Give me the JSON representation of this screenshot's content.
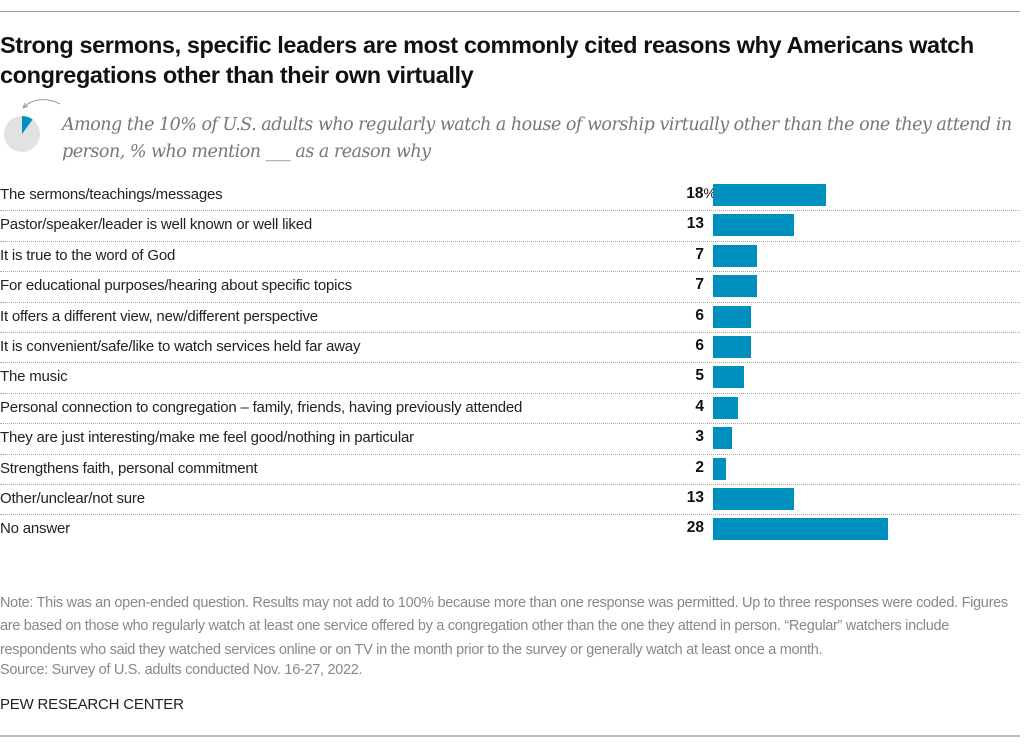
{
  "title": "Strong sermons, specific leaders are most commonly cited reasons why Americans watch congregations other than their own virtually",
  "subtitle": "Among the 10% of U.S. adults who regularly watch a house of worship virtually other than the one they attend in person, % who mention ___ as a reason why",
  "pie_icon": {
    "share_percent": 10,
    "fill_color": "#0090c0",
    "rest_color": "#e1e2e4"
  },
  "chart_data": {
    "type": "bar",
    "orientation": "horizontal",
    "title": "Strong sermons, specific leaders are most commonly cited reasons why Americans watch congregations other than their own virtually",
    "subtitle": "Among the 10% of U.S. adults who regularly watch a house of worship virtually other than the one they attend in person, % who mention ___ as a reason why",
    "xlabel": "",
    "ylabel": "",
    "unit": "%",
    "xlim": [
      0,
      28
    ],
    "grid": false,
    "bar_color": "#0090c0",
    "categories": [
      "The sermons/teachings/messages",
      "Pastor/speaker/leader is well known or well liked",
      "It is true to the word of God",
      "For educational purposes/hearing about specific topics",
      "It offers a different view, new/different perspective",
      "It is convenient/safe/like to watch services held far away",
      "The music",
      "Personal connection to congregation – family, friends, having previously attended",
      "They are just interesting/make me feel good/nothing in particular",
      "Strengthens faith, personal commitment",
      "Other/unclear/not sure",
      "No answer"
    ],
    "values": [
      18,
      13,
      7,
      7,
      6,
      6,
      5,
      4,
      3,
      2,
      13,
      28
    ],
    "value_labels": [
      "18",
      "13",
      "7",
      "7",
      "6",
      "6",
      "5",
      "4",
      "3",
      "2",
      "13",
      "28"
    ],
    "first_label_suffix": "%"
  },
  "footer": {
    "note": "Note: This was an open-ended question. Results may not add to 100% because more than one response was permitted. Up to three responses were coded. Figures are based on those who regularly watch at least one service offered by a congregation other than the one they attend in person. “Regular” watchers include respondents who said they watched services online or on TV in the month prior to the survey or generally watch at least once a month.",
    "source": "Source: Survey of U.S. adults conducted Nov. 16-27, 2022.",
    "brand": "PEW RESEARCH CENTER"
  }
}
